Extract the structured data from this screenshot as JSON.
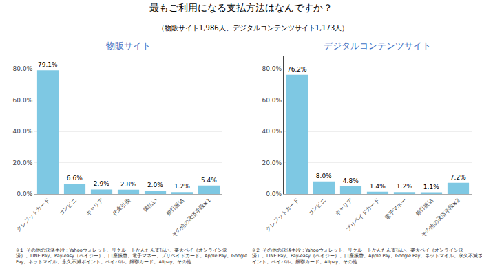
{
  "title": "最もご利用になる支払方法はなんですか？",
  "subtitle": "（物販サイト1,986人、デジタルコンテンツサイト1,173人）",
  "annotations": [
    "※１ その他の決済手段：Yahooウォレット、リクルートかんたん支払い、楽天ペイ（オンライン決\n済）、LINE Pay、Pay-easy（ペイジー）、口座振替、電子マネー、プリペイドカード、Apple Pay、Google\nPay、ネットマイル、永久不滅ポイント、ペイパル、銀聯カード、Alipay、その他",
    "※２ その他の決済手段：Yahooウォレット、リクルートかんたん支払い、楽天ペイ（オンライン決\n済）、LINE Pay、Pay-easy（ペイジー）、口座振替、Apple Pay、Google Pay、ネットマイル、永久不滅ポ\nイント、ペイパル、銀聯カード、Alipay、その他"
  ],
  "chart_data": [
    {
      "type": "bar",
      "title": "物販サイト",
      "categories": [
        "クレジットカード",
        "コンビニ",
        "キャリア",
        "代金引換",
        "後払い",
        "銀行振込",
        "その他の決済手段※1"
      ],
      "values": [
        79.1,
        6.6,
        2.9,
        2.8,
        2.0,
        1.2,
        5.4
      ],
      "value_labels": [
        "79.1%",
        "6.6%",
        "2.9%",
        "2.8%",
        "2.0%",
        "1.2%",
        "5.4%"
      ],
      "data_labels": true,
      "color": "#7ec8e3",
      "ylim": [
        0,
        88
      ],
      "yticks": [
        {
          "value": 0,
          "label": "0.0%"
        },
        {
          "value": 20,
          "label": "20.0%"
        },
        {
          "value": 40,
          "label": "40.0%"
        },
        {
          "value": 60,
          "label": "60.0%"
        },
        {
          "value": 80,
          "label": "80.0%"
        }
      ],
      "grid": true
    },
    {
      "type": "bar",
      "title": "デジタルコンテンツサイト",
      "categories": [
        "クレジットカード",
        "コンビニ",
        "キャリア",
        "プリペイドカード",
        "電子マネー",
        "銀行振込",
        "その他の決済手段※2"
      ],
      "values": [
        76.2,
        8.0,
        4.8,
        1.4,
        1.2,
        1.1,
        7.2
      ],
      "value_labels": [
        "76.2%",
        "8.0%",
        "4.8%",
        "1.4%",
        "1.2%",
        "1.1%",
        "7.2%"
      ],
      "data_labels": true,
      "color": "#7ec8e3",
      "ylim": [
        0,
        88
      ],
      "yticks": [
        {
          "value": 0,
          "label": "0.0%"
        },
        {
          "value": 20,
          "label": "20.0%"
        },
        {
          "value": 40,
          "label": "40.0%"
        },
        {
          "value": 60,
          "label": "60.0%"
        },
        {
          "value": 80,
          "label": "80.0%"
        }
      ],
      "grid": true
    }
  ]
}
